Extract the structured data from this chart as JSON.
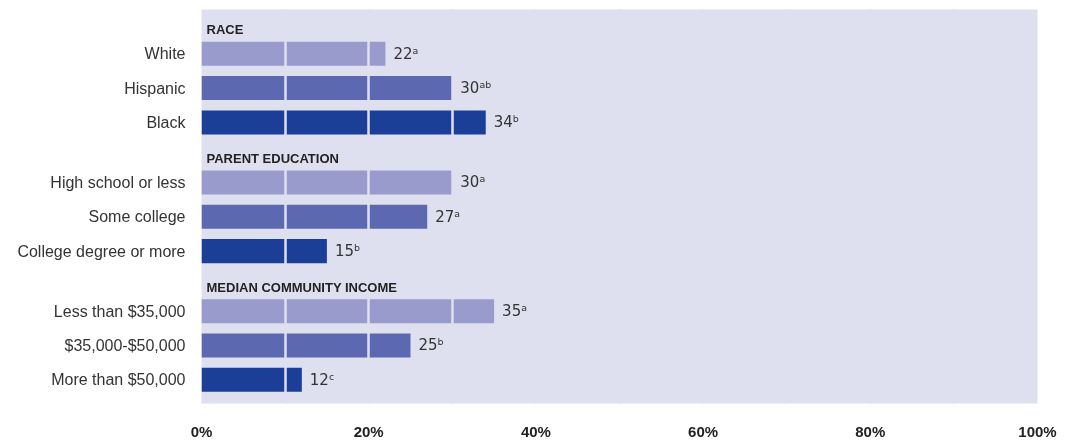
{
  "chart_data": {
    "type": "bar",
    "orientation": "horizontal",
    "categories": [
      "RACE",
      "White",
      "Hispanic",
      "Black",
      "PARENT EDUCATION",
      "High school or less",
      "Some college",
      "College degree or more",
      "MEDIAN COMMUNITY INCOME",
      "Less than $35,000",
      "$35,000-$50,000",
      "More than $50,000"
    ],
    "values": [
      null,
      22,
      30,
      34,
      null,
      30,
      27,
      15,
      null,
      35,
      25,
      12
    ],
    "colors": [
      null,
      "#989bcc",
      "#5c68b0",
      "#1b3f96",
      null,
      "#989bcc",
      "#5c68b0",
      "#1b3f96",
      null,
      "#989bcc",
      "#5c68b0",
      "#1b3f96"
    ],
    "value_labels": [
      null,
      "22ᵃ",
      "30ᵃᵇ",
      "34ᵇ",
      null,
      "30ᵃ",
      "27ᵃ",
      "15ᵇ",
      null,
      "35ᵃ",
      "25ᵇ",
      "12ᶜ"
    ],
    "xlim": [
      0,
      100
    ],
    "xticks": [
      {
        "value": 0,
        "label": "0%"
      },
      {
        "value": 10,
        "label": null
      },
      {
        "value": 20,
        "label": "20%"
      },
      {
        "value": 30,
        "label": null
      },
      {
        "value": 40,
        "label": "40%"
      },
      {
        "value": 50,
        "label": null
      },
      {
        "value": 60,
        "label": "60%"
      },
      {
        "value": 70,
        "label": null
      },
      {
        "value": 80,
        "label": "80%"
      },
      {
        "value": 90,
        "label": null
      },
      {
        "value": 100,
        "label": "100%"
      }
    ],
    "grid": "x"
  }
}
